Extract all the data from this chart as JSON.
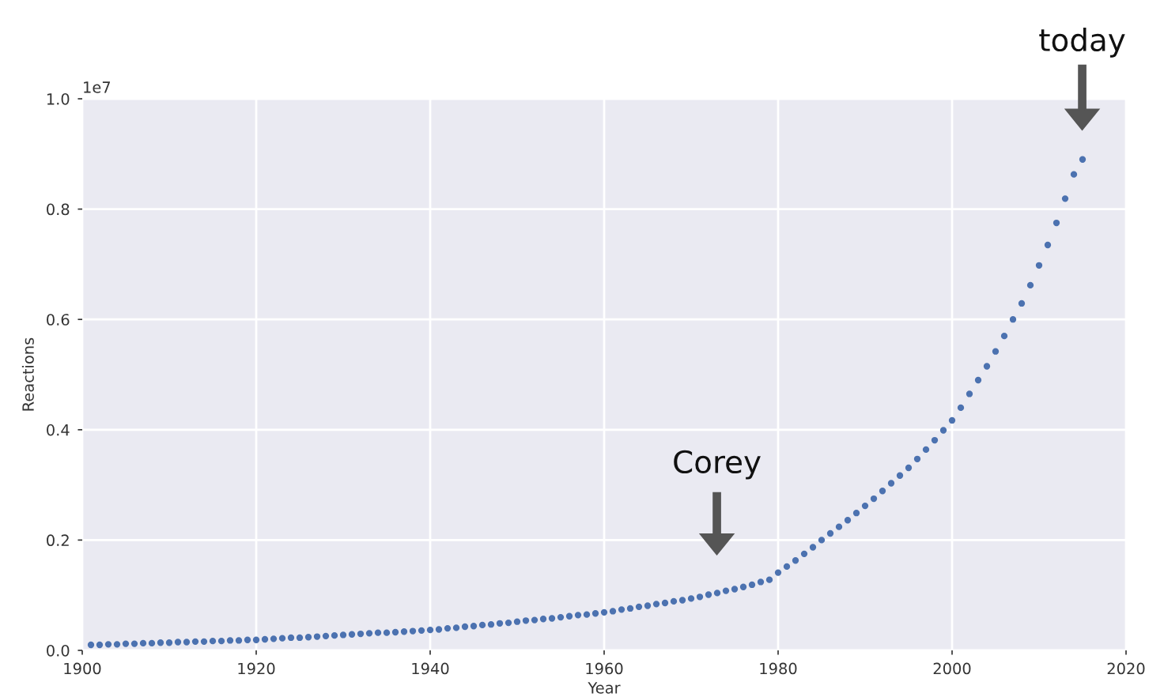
{
  "chart_data": {
    "type": "scatter",
    "xlabel": "Year",
    "ylabel": "Reactions",
    "x": [
      1901,
      1902,
      1903,
      1904,
      1905,
      1906,
      1907,
      1908,
      1909,
      1910,
      1911,
      1912,
      1913,
      1914,
      1915,
      1916,
      1917,
      1918,
      1919,
      1920,
      1921,
      1922,
      1923,
      1924,
      1925,
      1926,
      1927,
      1928,
      1929,
      1930,
      1931,
      1932,
      1933,
      1934,
      1935,
      1936,
      1937,
      1938,
      1939,
      1940,
      1941,
      1942,
      1943,
      1944,
      1945,
      1946,
      1947,
      1948,
      1949,
      1950,
      1951,
      1952,
      1953,
      1954,
      1955,
      1956,
      1957,
      1958,
      1959,
      1960,
      1961,
      1962,
      1963,
      1964,
      1965,
      1966,
      1967,
      1968,
      1969,
      1970,
      1971,
      1972,
      1973,
      1974,
      1975,
      1976,
      1977,
      1978,
      1979,
      1980,
      1981,
      1982,
      1983,
      1984,
      1985,
      1986,
      1987,
      1988,
      1989,
      1990,
      1991,
      1992,
      1993,
      1994,
      1995,
      1996,
      1997,
      1998,
      1999,
      2000,
      2001,
      2002,
      2003,
      2004,
      2005,
      2006,
      2007,
      2008,
      2009,
      2010,
      2011,
      2012,
      2013,
      2014,
      2015
    ],
    "series": [
      {
        "color": "#4c72b0",
        "values": [
          0.01,
          0.01,
          0.011,
          0.011,
          0.012,
          0.012,
          0.013,
          0.013,
          0.014,
          0.014,
          0.015,
          0.015,
          0.016,
          0.016,
          0.017,
          0.017,
          0.018,
          0.018,
          0.019,
          0.019,
          0.02,
          0.021,
          0.022,
          0.023,
          0.023,
          0.024,
          0.025,
          0.026,
          0.027,
          0.028,
          0.029,
          0.03,
          0.031,
          0.032,
          0.032,
          0.033,
          0.034,
          0.035,
          0.036,
          0.037,
          0.038,
          0.04,
          0.041,
          0.043,
          0.044,
          0.046,
          0.047,
          0.049,
          0.05,
          0.052,
          0.054,
          0.055,
          0.057,
          0.058,
          0.06,
          0.062,
          0.064,
          0.065,
          0.067,
          0.069,
          0.071,
          0.074,
          0.076,
          0.079,
          0.081,
          0.084,
          0.086,
          0.089,
          0.091,
          0.094,
          0.097,
          0.101,
          0.104,
          0.108,
          0.111,
          0.115,
          0.119,
          0.124,
          0.128,
          0.141,
          0.152,
          0.163,
          0.175,
          0.187,
          0.2,
          0.212,
          0.224,
          0.236,
          0.249,
          0.262,
          0.275,
          0.289,
          0.303,
          0.317,
          0.331,
          0.347,
          0.364,
          0.381,
          0.399,
          0.417,
          0.44,
          0.465,
          0.49,
          0.515,
          0.542,
          0.57,
          0.6,
          0.629,
          0.662,
          0.698,
          0.735,
          0.775,
          0.819,
          0.863,
          0.89
        ]
      }
    ],
    "xlim": [
      1900,
      2020
    ],
    "xticks": [
      1900,
      1920,
      1940,
      1960,
      1980,
      2000,
      2020
    ],
    "ylim": [
      0,
      1.0
    ],
    "yticks": [
      {
        "value": 0,
        "label": "0.0"
      },
      0.2,
      0.4,
      0.6,
      0.8,
      {
        "value": 1,
        "label": "1.0"
      }
    ],
    "grid": true,
    "marker": "circle",
    "annotations": [
      "1e7",
      "Corey",
      "today"
    ]
  }
}
